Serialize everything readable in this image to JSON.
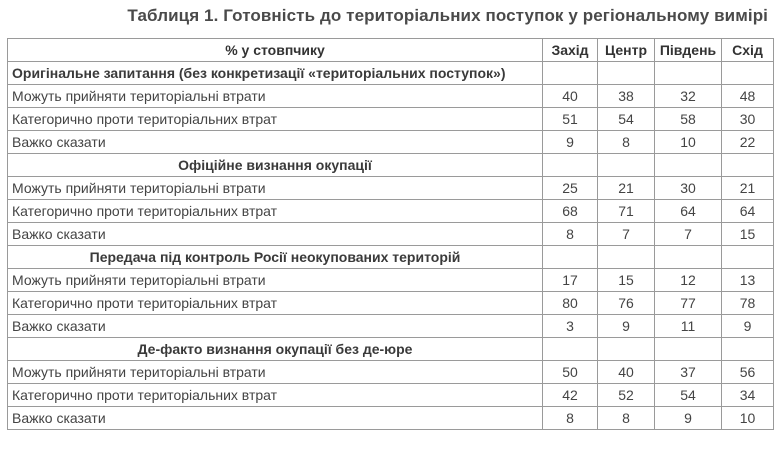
{
  "title": "Таблиця 1. Готовність до територіальних поступок у регіональному вимірі",
  "header": {
    "label": "% у стовпчику",
    "columns": [
      "Захід",
      "Центр",
      "Південь",
      "Схід"
    ]
  },
  "sections": [
    {
      "title": "Оригінальне запитання (без конкретизації «територіальних поступок»)",
      "rows": [
        {
          "label": "Можуть прийняти територіальні втрати",
          "values": [
            "40",
            "38",
            "32",
            "48"
          ]
        },
        {
          "label": "Категорично проти територіальних втрат",
          "values": [
            "51",
            "54",
            "58",
            "30"
          ]
        },
        {
          "label": "Важко сказати",
          "values": [
            "9",
            "8",
            "10",
            "22"
          ]
        }
      ]
    },
    {
      "title": "Офіційне визнання окупації",
      "rows": [
        {
          "label": "Можуть прийняти територіальні втрати",
          "values": [
            "25",
            "21",
            "30",
            "21"
          ]
        },
        {
          "label": "Категорично проти територіальних втрат",
          "values": [
            "68",
            "71",
            "64",
            "64"
          ]
        },
        {
          "label": "Важко сказати",
          "values": [
            "8",
            "7",
            "7",
            "15"
          ]
        }
      ]
    },
    {
      "title": "Передача під контроль Росії неокупованих територій",
      "rows": [
        {
          "label": "Можуть прийняти територіальні втрати",
          "values": [
            "17",
            "15",
            "12",
            "13"
          ]
        },
        {
          "label": "Категорично проти територіальних втрат",
          "values": [
            "80",
            "76",
            "77",
            "78"
          ]
        },
        {
          "label": "Важко сказати",
          "values": [
            "3",
            "9",
            "11",
            "9"
          ]
        }
      ]
    },
    {
      "title": "Де-факто визнання окупації без де-юре",
      "rows": [
        {
          "label": "Можуть прийняти територіальні втрати",
          "values": [
            "50",
            "40",
            "37",
            "56"
          ]
        },
        {
          "label": "Категорично проти територіальних втрат",
          "values": [
            "42",
            "52",
            "54",
            "34"
          ]
        },
        {
          "label": "Важко сказати",
          "values": [
            "8",
            "8",
            "9",
            "10"
          ]
        }
      ]
    }
  ]
}
